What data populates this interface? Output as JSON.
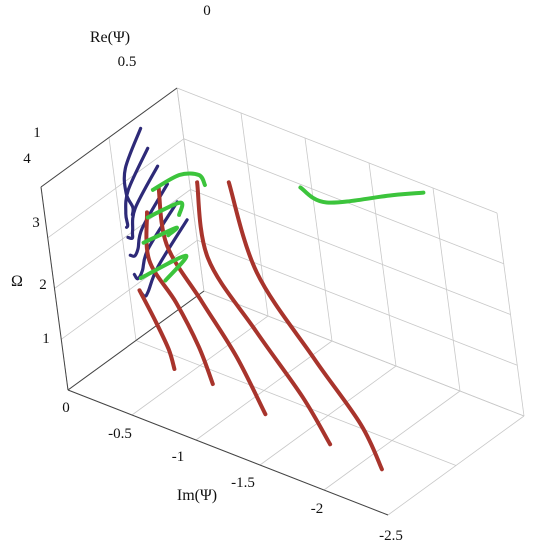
{
  "chart_data": {
    "type": "3d-line",
    "axes": {
      "x": {
        "label": "Im(Ψ)",
        "ticks": [
          "0",
          "-0.5",
          "-1",
          "-1.5",
          "-2",
          "-2.5"
        ],
        "range": [
          0,
          -2.5
        ]
      },
      "y": {
        "label": "Re(Ψ)",
        "ticks": [
          "0",
          "0.5",
          "1"
        ],
        "range": [
          0,
          1
        ]
      },
      "z": {
        "label": "Ω",
        "ticks": [
          "1",
          "2",
          "3",
          "4"
        ],
        "range": [
          0,
          4
        ]
      }
    },
    "grid": true,
    "colors": {
      "blue": "#2e2a78",
      "red": "#a8342c",
      "green": "#3cc43c",
      "grid": "#c8c8c8"
    },
    "blue_curves": [
      [
        [
          0,
          0.95,
          1.5
        ],
        [
          -0.2,
          0.55,
          1.55
        ],
        [
          -0.4,
          0.3,
          1.75
        ],
        [
          -0.55,
          0.15,
          2.1
        ],
        [
          -0.6,
          0.08,
          2.4
        ]
      ],
      [
        [
          0,
          0.9,
          1.95
        ],
        [
          -0.2,
          0.5,
          2.0
        ],
        [
          -0.4,
          0.28,
          2.2
        ],
        [
          -0.55,
          0.12,
          2.5
        ],
        [
          -0.6,
          0.06,
          2.75
        ]
      ],
      [
        [
          0,
          0.85,
          2.4
        ],
        [
          -0.2,
          0.48,
          2.45
        ],
        [
          -0.4,
          0.27,
          2.65
        ],
        [
          -0.55,
          0.12,
          2.95
        ],
        [
          -0.6,
          0.05,
          3.15
        ]
      ],
      [
        [
          0,
          0.8,
          2.85
        ],
        [
          -0.2,
          0.45,
          2.9
        ],
        [
          -0.4,
          0.25,
          3.05
        ],
        [
          -0.55,
          0.12,
          3.3
        ],
        [
          -0.6,
          0.05,
          3.5
        ]
      ],
      [
        [
          0,
          0.75,
          3.3
        ],
        [
          -0.2,
          0.42,
          3.32
        ],
        [
          -0.4,
          0.22,
          3.45
        ],
        [
          -0.55,
          0.1,
          3.6
        ],
        [
          -0.6,
          0.05,
          3.7
        ]
      ],
      [
        [
          0,
          0.72,
          3.75
        ],
        [
          -0.2,
          0.42,
          3.75
        ],
        [
          -0.4,
          0.24,
          3.8
        ],
        [
          -0.55,
          0.15,
          3.85
        ],
        [
          -0.6,
          0.1,
          3.85
        ]
      ]
    ],
    "red_curves": [
      [
        [
          -0.6,
          0.08,
          2.4
        ],
        [
          -0.75,
          0.04,
          2.0
        ],
        [
          -0.85,
          0.02,
          1.6
        ],
        [
          -0.9,
          0.0,
          1.3
        ]
      ],
      [
        [
          -0.6,
          0.2,
          3.7
        ],
        [
          -0.75,
          0.05,
          3.2
        ],
        [
          -0.95,
          0.03,
          2.6
        ],
        [
          -1.1,
          0.02,
          1.9
        ],
        [
          -1.2,
          0.0,
          1.3
        ]
      ],
      [
        [
          -0.6,
          0.3,
          4.0
        ],
        [
          -0.85,
          0.1,
          3.5
        ],
        [
          -1.15,
          0.04,
          2.8
        ],
        [
          -1.4,
          0.02,
          2.0
        ],
        [
          -1.6,
          0.0,
          1.1
        ]
      ],
      [
        [
          -0.8,
          0.4,
          4.1
        ],
        [
          -1.15,
          0.12,
          3.5
        ],
        [
          -1.55,
          0.05,
          2.6
        ],
        [
          -1.9,
          0.02,
          1.7
        ],
        [
          -2.1,
          0.0,
          1.0
        ]
      ],
      [
        [
          -1.0,
          0.45,
          4.2
        ],
        [
          -1.5,
          0.15,
          3.5
        ],
        [
          -2.0,
          0.05,
          2.5
        ],
        [
          -2.35,
          0.02,
          1.6
        ],
        [
          -2.5,
          0.0,
          0.9
        ]
      ]
    ],
    "green_curves": [
      [
        [
          -0.55,
          0.3,
          3.9
        ],
        [
          -0.6,
          0.45,
          3.95
        ],
        [
          -0.7,
          0.5,
          3.95
        ],
        [
          -0.8,
          0.45,
          3.95
        ]
      ],
      [
        [
          -0.6,
          0.2,
          3.6
        ],
        [
          -0.7,
          0.35,
          3.7
        ],
        [
          -0.8,
          0.25,
          3.75
        ]
      ],
      [
        [
          -0.6,
          0.15,
          3.2
        ],
        [
          -0.7,
          0.3,
          3.3
        ],
        [
          -0.75,
          0.2,
          3.4
        ]
      ],
      [
        [
          -0.6,
          0.1,
          2.6
        ],
        [
          -0.75,
          0.3,
          2.8
        ],
        [
          -0.8,
          0.1,
          2.75
        ]
      ],
      [
        [
          -1.4,
          0.6,
          4.2
        ],
        [
          -1.6,
          0.6,
          4.1
        ],
        [
          -1.9,
          0.8,
          4.15
        ],
        [
          -2.1,
          0.85,
          4.3
        ]
      ]
    ]
  }
}
